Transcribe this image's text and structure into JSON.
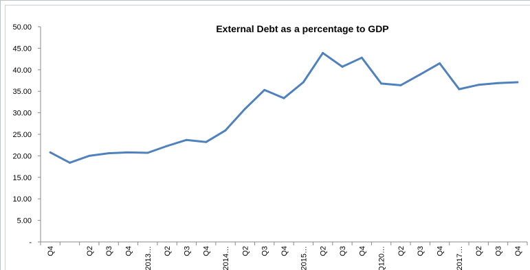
{
  "chart_data": {
    "type": "line",
    "title": "External Debt as a percentage to GDP",
    "xlabel": "",
    "ylabel": "",
    "ylim": [
      0,
      50
    ],
    "yticks": [
      "-",
      "5.00",
      "10.00",
      "15.00",
      "20.00",
      "25.00",
      "30.00",
      "35.00",
      "40.00",
      "45.00",
      "50.00"
    ],
    "grid": false,
    "legend": "none",
    "categories": [
      "Q4",
      "",
      "Q2",
      "Q3",
      "Q4",
      "2013…",
      "Q2",
      "Q3",
      "Q4",
      "2014…",
      "Q2",
      "Q3",
      "Q4",
      "2015…",
      "Q2",
      "Q3",
      "Q4",
      "Q120…",
      "Q2",
      "Q3",
      "Q4",
      "2017…",
      "Q2",
      "Q3",
      "Q4"
    ],
    "series": [
      {
        "name": "",
        "color": "#4f81bd",
        "values": [
          20.8,
          18.4,
          20.0,
          20.6,
          20.8,
          20.7,
          22.3,
          23.7,
          23.2,
          25.9,
          30.9,
          35.3,
          33.4,
          37.1,
          43.9,
          40.7,
          42.8,
          36.8,
          36.4,
          38.9,
          41.5,
          35.5,
          36.5,
          36.9,
          37.1
        ]
      }
    ]
  }
}
